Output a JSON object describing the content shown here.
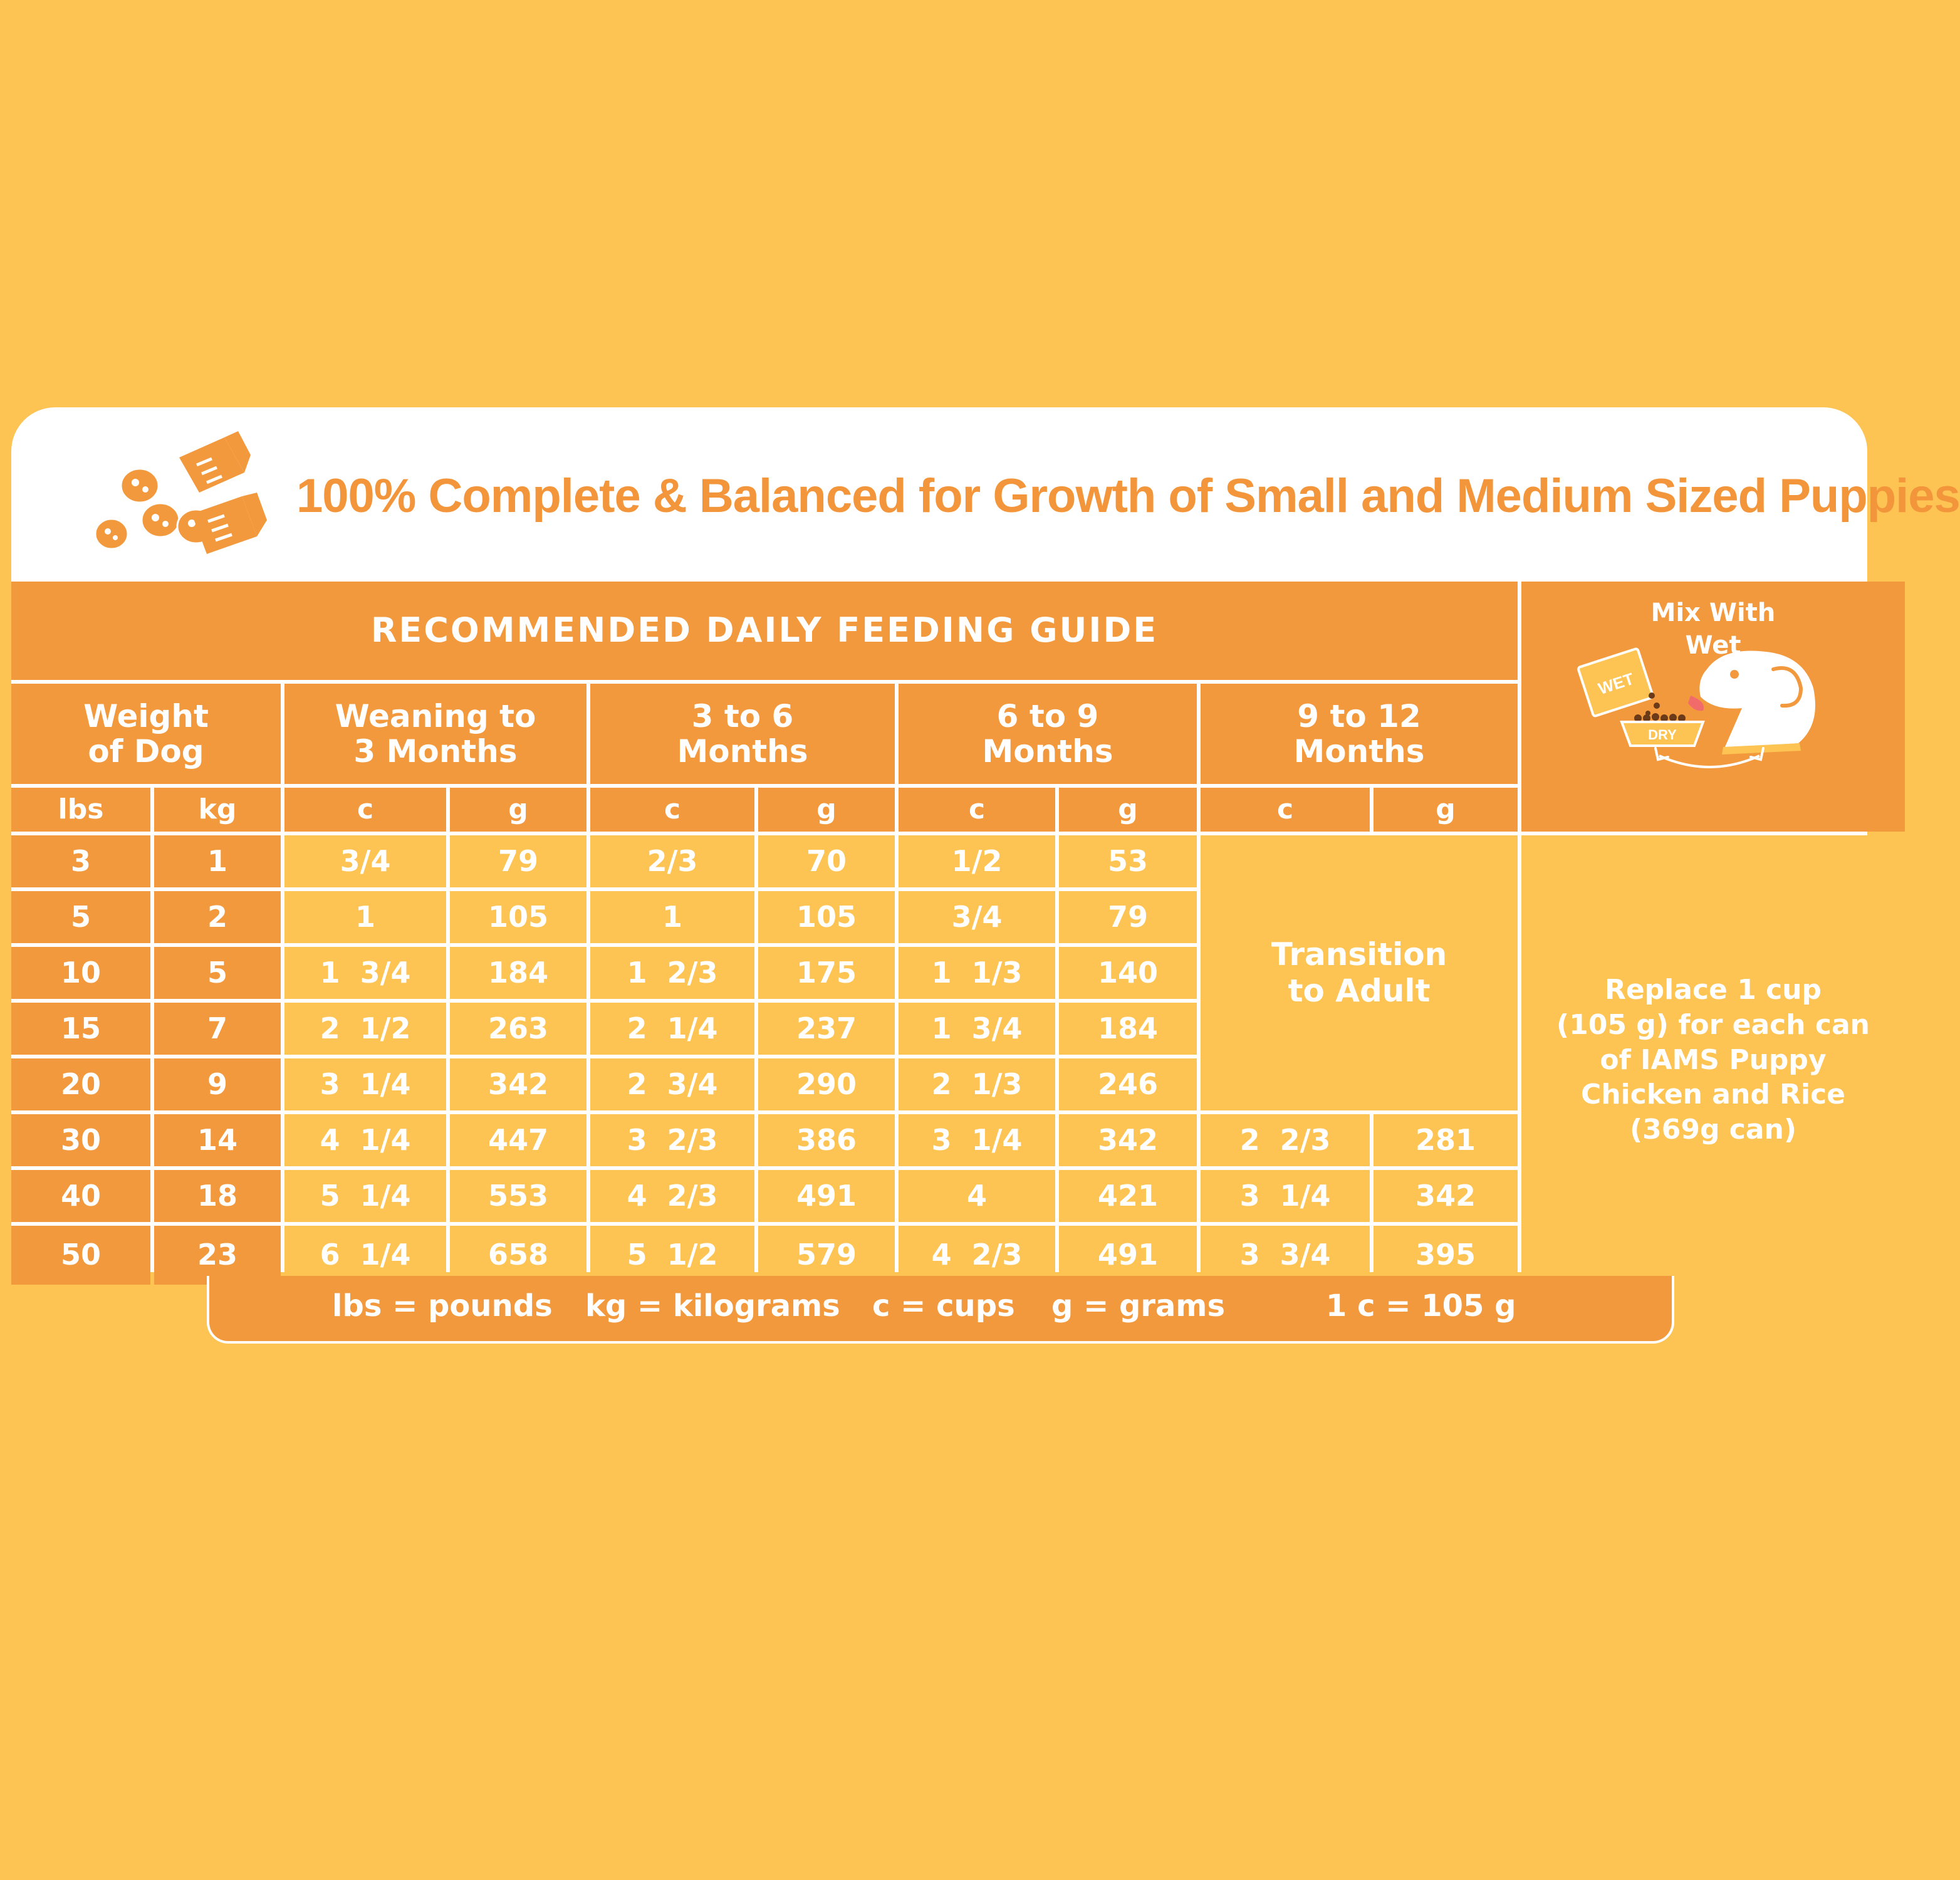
{
  "header": {
    "title": "100% Complete & Balanced for Growth of Small and Medium Sized Puppies",
    "icon": "kibble-and-measuring-cup-icon"
  },
  "guide": {
    "title": "RECOMMENDED DAILY FEEDING GUIDE",
    "weight_label": "Weight\nof Dog",
    "ages": [
      "Weaning to\n3 Months",
      "3 to 6\nMonths",
      "6 to 9\nMonths",
      "9 to 12\nMonths"
    ],
    "units": [
      "lbs",
      "kg",
      "c",
      "g",
      "c",
      "g",
      "c",
      "g",
      "c",
      "g"
    ],
    "rows": [
      [
        "3",
        "1",
        "3/4",
        "79",
        "2/3",
        "70",
        "1/2",
        "53"
      ],
      [
        "5",
        "2",
        "1",
        "105",
        "1",
        "105",
        "3/4",
        "79"
      ],
      [
        "10",
        "5",
        "1  3/4",
        "184",
        "1  2/3",
        "175",
        "1  1/3",
        "140"
      ],
      [
        "15",
        "7",
        "2  1/2",
        "263",
        "2  1/4",
        "237",
        "1  3/4",
        "184"
      ],
      [
        "20",
        "9",
        "3  1/4",
        "342",
        "2  3/4",
        "290",
        "2  1/3",
        "246"
      ],
      [
        "30",
        "14",
        "4  1/4",
        "447",
        "3  2/3",
        "386",
        "3  1/4",
        "342",
        "2  2/3",
        "281"
      ],
      [
        "40",
        "18",
        "5  1/4",
        "553",
        "4  2/3",
        "491",
        "4",
        "421",
        "3  1/4",
        "342"
      ],
      [
        "50",
        "23",
        "6  1/4",
        "658",
        "5  1/2",
        "579",
        "4  2/3",
        "491",
        "3  3/4",
        "395"
      ]
    ],
    "transition": "Transition\nto Adult"
  },
  "mix": {
    "title": "Mix With\nWet",
    "wet_label": "WET",
    "dry_label": "DRY",
    "icon": "puppy-eating-from-bowl-icon",
    "replace_text": "Replace 1 cup\n(105 g) for each can\nof IAMS Puppy\nChicken and Rice\n(369g can)"
  },
  "legend": {
    "items": [
      "lbs = pounds",
      "kg = kilograms",
      "c = cups",
      "g = grams",
      "1 c = 105 g"
    ]
  },
  "colors": {
    "background": "#FDC454",
    "header_orange": "#F3993D",
    "title_orange": "#F3963B",
    "white": "#FFFFFF"
  }
}
